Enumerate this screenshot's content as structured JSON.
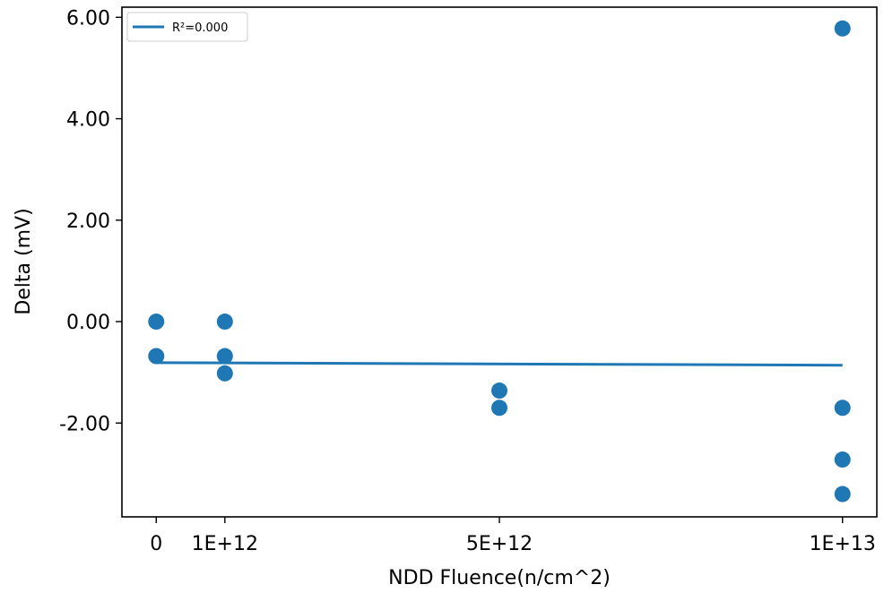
{
  "chart_data": {
    "type": "scatter",
    "xlabel": "NDD Fluence(n/cm^2)",
    "ylabel": "Delta (mV)",
    "xlim": [
      -500000000000,
      10500000000000
    ],
    "ylim": [
      -3.85,
      6.2
    ],
    "x_ticks": [
      {
        "value": 0,
        "label": "0"
      },
      {
        "value": 1000000000000,
        "label": "1E+12"
      },
      {
        "value": 5000000000000,
        "label": "5E+12"
      },
      {
        "value": 10000000000000,
        "label": "1E+13"
      }
    ],
    "y_ticks": [
      {
        "value": -2,
        "label": "-2.00"
      },
      {
        "value": 0,
        "label": "0.00"
      },
      {
        "value": 2,
        "label": "2.00"
      },
      {
        "value": 4,
        "label": "4.00"
      },
      {
        "value": 6,
        "label": "6.00"
      }
    ],
    "points": [
      {
        "x": 0,
        "y": 0.0
      },
      {
        "x": 0,
        "y": -0.68
      },
      {
        "x": 1000000000000,
        "y": 0.0
      },
      {
        "x": 1000000000000,
        "y": -0.68
      },
      {
        "x": 1000000000000,
        "y": -1.02
      },
      {
        "x": 5000000000000,
        "y": -1.36
      },
      {
        "x": 5000000000000,
        "y": -1.7
      },
      {
        "x": 10000000000000,
        "y": 5.78
      },
      {
        "x": 10000000000000,
        "y": -1.7
      },
      {
        "x": 10000000000000,
        "y": -2.72
      },
      {
        "x": 10000000000000,
        "y": -3.4
      }
    ],
    "fit_line": {
      "label": "R²=0.000",
      "x": [
        0,
        10000000000000
      ],
      "y": [
        -0.81,
        -0.86
      ]
    },
    "legend_position": "upper-left",
    "grid": false,
    "color": "#1f77b4"
  }
}
